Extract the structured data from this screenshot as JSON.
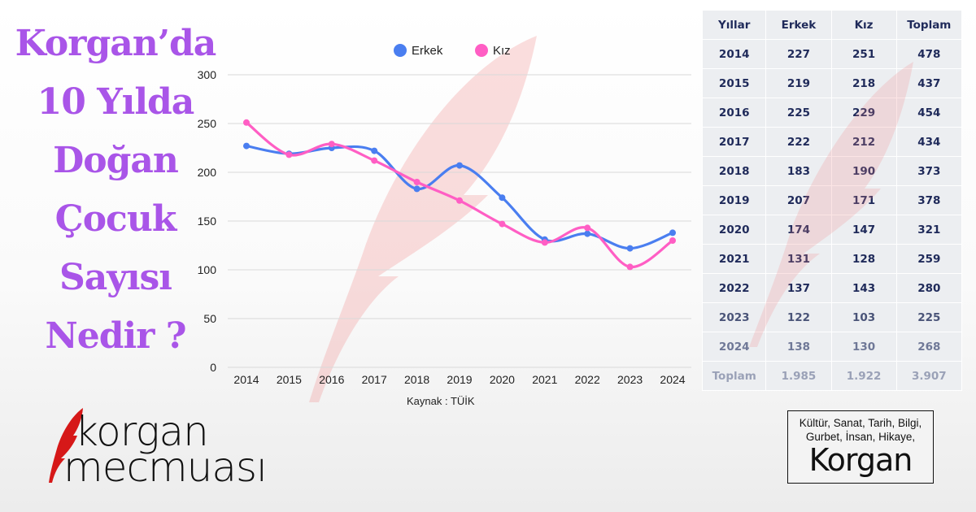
{
  "title": {
    "lines": [
      "Korgan’da",
      "10 Yılda",
      "Doğan",
      "Çocuk",
      "Sayısı",
      "Nedir ?"
    ]
  },
  "colors": {
    "title": "#a955e8",
    "erkek": "#4a7ef0",
    "kiz": "#ff5ec4",
    "feather": "#f08a8a"
  },
  "chart_data": {
    "type": "line",
    "x": [
      "2014",
      "2015",
      "2016",
      "2017",
      "2018",
      "2019",
      "2020",
      "2021",
      "2022",
      "2023",
      "2024"
    ],
    "series": [
      {
        "name": "Erkek",
        "values": [
          227,
          219,
          225,
          222,
          183,
          207,
          174,
          131,
          137,
          122,
          138
        ]
      },
      {
        "name": "Kız",
        "values": [
          251,
          218,
          229,
          212,
          190,
          171,
          147,
          128,
          143,
          103,
          130
        ]
      }
    ],
    "yticks": [
      0,
      50,
      100,
      150,
      200,
      250,
      300
    ],
    "ylim": [
      0,
      300
    ],
    "legend": "top-center",
    "grid": true,
    "source": "Kaynak : TÜİK"
  },
  "table": {
    "headers": [
      "Yıllar",
      "Erkek",
      "Kız",
      "Toplam"
    ],
    "rows": [
      [
        "2014",
        "227",
        "251",
        "478"
      ],
      [
        "2015",
        "219",
        "218",
        "437"
      ],
      [
        "2016",
        "225",
        "229",
        "454"
      ],
      [
        "2017",
        "222",
        "212",
        "434"
      ],
      [
        "2018",
        "183",
        "190",
        "373"
      ],
      [
        "2019",
        "207",
        "171",
        "378"
      ],
      [
        "2020",
        "174",
        "147",
        "321"
      ],
      [
        "2021",
        "131",
        "128",
        "259"
      ],
      [
        "2022",
        "137",
        "143",
        "280"
      ],
      [
        "2023",
        "122",
        "103",
        "225"
      ],
      [
        "2024",
        "138",
        "130",
        "268"
      ]
    ],
    "total": [
      "Toplam",
      "1.985",
      "1.922",
      "3.907"
    ]
  },
  "logo": {
    "line1": "korgan",
    "line2": "mecmuası"
  },
  "stamp": {
    "text": "Kültür, Sanat, Tarih, Bilgi, Gurbet, İnsan, Hikaye,",
    "brand": "Korgan"
  }
}
